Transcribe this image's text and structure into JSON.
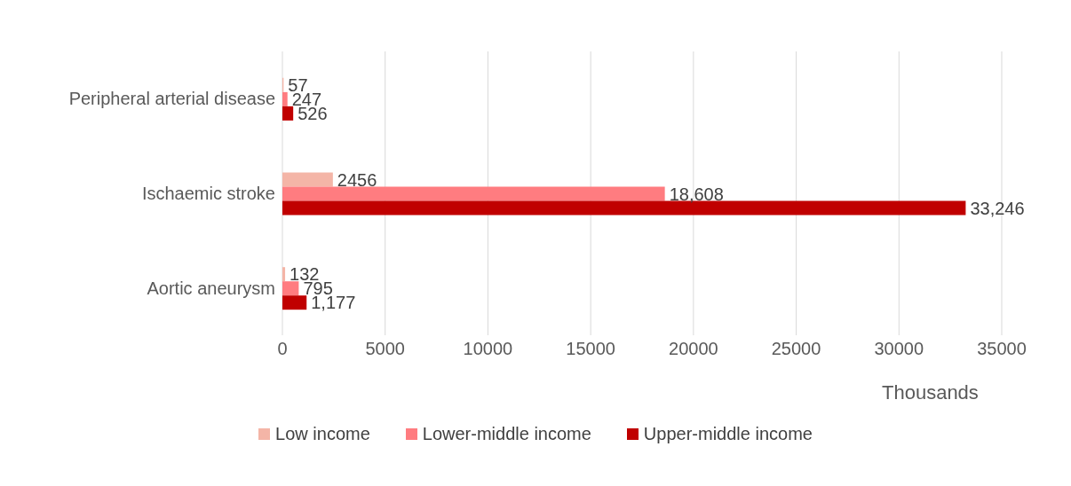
{
  "chart_data": {
    "type": "bar",
    "orientation": "horizontal",
    "categories": [
      "Peripheral arterial disease",
      "Ischaemic stroke",
      "Aortic aneurysm"
    ],
    "series": [
      {
        "name": "Low income",
        "color": "#f4b5a7",
        "values": [
          57,
          2456,
          132
        ],
        "value_labels": [
          "57",
          "2456",
          "132"
        ]
      },
      {
        "name": "Lower-middle income",
        "color": "#ff7c80",
        "values": [
          247,
          18608,
          795
        ],
        "value_labels": [
          "247",
          "18,608",
          "795"
        ]
      },
      {
        "name": "Upper-middle income",
        "color": "#c00000",
        "values": [
          526,
          33246,
          1177
        ],
        "value_labels": [
          "526",
          "33,246",
          "1,177"
        ]
      }
    ],
    "xlim": [
      0,
      35000
    ],
    "xticks": [
      0,
      5000,
      10000,
      15000,
      20000,
      25000,
      30000,
      35000
    ],
    "xlabel": "Thousands",
    "grid": "x",
    "legend": "bottom"
  }
}
